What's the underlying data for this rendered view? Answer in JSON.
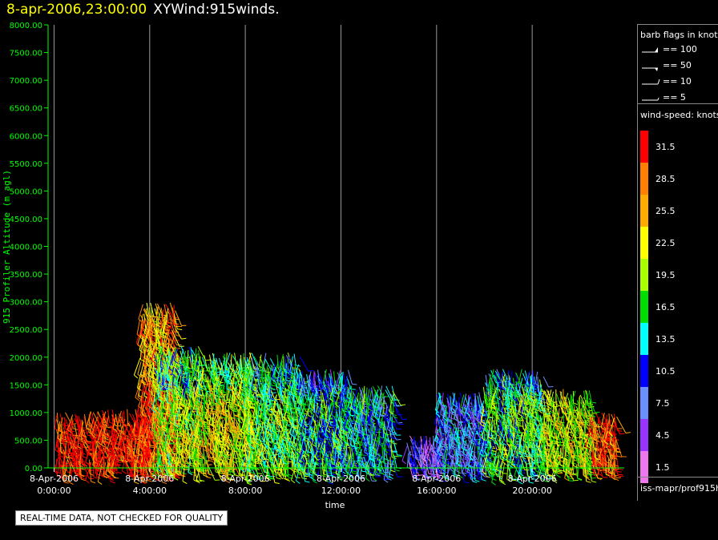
{
  "header": {
    "timestamp": "8-apr-2006,23:00:00",
    "product": "XYWind:915winds."
  },
  "legend": {
    "barb_title": "barb flags in knots",
    "barbs": [
      {
        "label": "== 100"
      },
      {
        "label": "== 50"
      },
      {
        "label": "== 10"
      },
      {
        "label": "== 5"
      }
    ],
    "speed_title": "wind-speed: knots",
    "speed_scale": [
      {
        "label": "31.5",
        "color": "#ff0000"
      },
      {
        "label": "28.5",
        "color": "#ff7f00"
      },
      {
        "label": "25.5",
        "color": "#ffaa00"
      },
      {
        "label": "22.5",
        "color": "#ffff00"
      },
      {
        "label": "19.5",
        "color": "#aaff00"
      },
      {
        "label": "16.5",
        "color": "#00dd00"
      },
      {
        "label": "13.5",
        "color": "#00ffff"
      },
      {
        "label": "10.5",
        "color": "#0000ff"
      },
      {
        "label": "7.5",
        "color": "#6a8fff"
      },
      {
        "label": "4.5",
        "color": "#9933ff"
      },
      {
        "label": "1.5",
        "color": "#ee77ee"
      }
    ],
    "source": "iss-mapr/prof915h"
  },
  "notice": "REAL-TIME DATA, NOT CHECKED FOR QUALITY",
  "chart_data": {
    "type": "scatter",
    "title": "8-apr-2006,23:00:00  XYWind:915winds.",
    "xlabel": "time",
    "ylabel": "915 Profiler Altitude (m agl)",
    "ylim": [
      0,
      8000
    ],
    "xlim_hours": [
      -0.25,
      23.85
    ],
    "x_ticks": [
      {
        "hour": 0,
        "date": "8-Apr-2006",
        "time": "0:00:00"
      },
      {
        "hour": 4,
        "date": "8-Apr-2006",
        "time": "4:00:00"
      },
      {
        "hour": 8,
        "date": "8-Apr-2006",
        "time": "8:00:00"
      },
      {
        "hour": 12,
        "date": "8-Apr-2006",
        "time": "12:00:00"
      },
      {
        "hour": 16,
        "date": "8-Apr-2006",
        "time": "16:00:00"
      },
      {
        "hour": 20,
        "date": "8-Apr-2006",
        "time": "20:00:00"
      }
    ],
    "y_ticks": [
      "0.00",
      "500.00",
      "1000.00",
      "1500.00",
      "2000.00",
      "2500.00",
      "3000.00",
      "3500.00",
      "4000.00",
      "4500.00",
      "5000.00",
      "5500.00",
      "6000.00",
      "6500.00",
      "7000.00",
      "7500.00",
      "8000.00"
    ],
    "grid": "vertical lines at x ticks",
    "axis_color": "#00ff00",
    "barb_profiles": [
      {
        "t_start": 0.1,
        "t_end": 1.3,
        "z_top": 1000,
        "speed": 31.5
      },
      {
        "t_start": 1.5,
        "t_end": 4.0,
        "z_top": 1050,
        "speed": 31.0
      },
      {
        "t_start": 3.6,
        "t_end": 5.1,
        "z_top": 3000,
        "speed": 30.0
      },
      {
        "t_start": 4.2,
        "t_end": 6.0,
        "z_top": 2200,
        "speed": 20.0
      },
      {
        "t_start": 6.0,
        "t_end": 8.3,
        "z_top": 2100,
        "speed": 22.0
      },
      {
        "t_start": 8.0,
        "t_end": 10.3,
        "z_top": 2100,
        "speed": 18.0
      },
      {
        "t_start": 10.3,
        "t_end": 12.3,
        "z_top": 1800,
        "speed": 15.0
      },
      {
        "t_start": 12.3,
        "t_end": 14.2,
        "z_top": 1500,
        "speed": 13.0
      },
      {
        "t_start": 14.8,
        "t_end": 16.2,
        "z_top": 600,
        "speed": 6.0
      },
      {
        "t_start": 16.0,
        "t_end": 18.0,
        "z_top": 1350,
        "speed": 10.0
      },
      {
        "t_start": 18.0,
        "t_end": 20.5,
        "z_top": 1800,
        "speed": 17.0
      },
      {
        "t_start": 20.5,
        "t_end": 22.5,
        "z_top": 1400,
        "speed": 21.0
      },
      {
        "t_start": 22.5,
        "t_end": 23.5,
        "z_top": 1000,
        "speed": 29.0
      }
    ]
  }
}
